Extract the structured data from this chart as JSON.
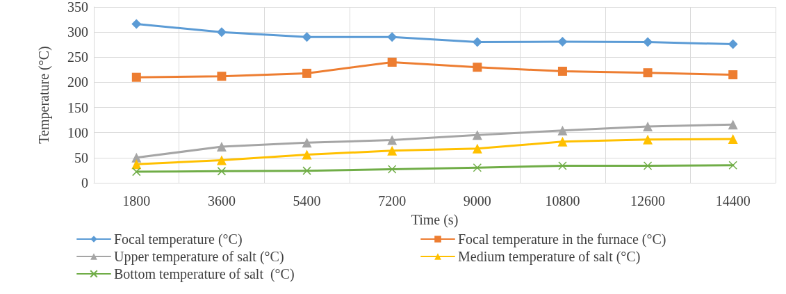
{
  "chart_data": {
    "type": "line",
    "xlabel": "Time (s)",
    "ylabel": "Temperature (°C)",
    "categories": [
      "1800",
      "3600",
      "5400",
      "7200",
      "9000",
      "10800",
      "12600",
      "14400"
    ],
    "ylim": [
      0,
      350
    ],
    "yticks": [
      0,
      50,
      100,
      150,
      200,
      250,
      300,
      350
    ],
    "grid": true,
    "legend": "bottom",
    "line_style": "solid",
    "series": [
      {
        "name": "Focal temperature (°C)",
        "color": "#5b9bd5",
        "marker": "diamond",
        "values": [
          316,
          300,
          290,
          290,
          280,
          281,
          280,
          276
        ]
      },
      {
        "name": "Focal temperature in the furnace (°C)",
        "color": "#ed7d31",
        "marker": "square",
        "values": [
          210,
          212,
          218,
          240,
          230,
          222,
          219,
          215
        ]
      },
      {
        "name": "Upper temperature of salt (°C)",
        "color": "#a5a5a5",
        "marker": "triangle",
        "values": [
          50,
          72,
          80,
          85,
          95,
          104,
          112,
          116
        ]
      },
      {
        "name": "Medium temperature of salt (°C)",
        "color": "#ffc000",
        "marker": "triangle",
        "values": [
          37,
          45,
          56,
          64,
          68,
          82,
          86,
          87
        ]
      },
      {
        "name": "Bottom temperature of salt  (°C)",
        "color": "#70ad47",
        "marker": "cross",
        "values": [
          22,
          23,
          24,
          27,
          30,
          34,
          34,
          35
        ]
      }
    ]
  }
}
